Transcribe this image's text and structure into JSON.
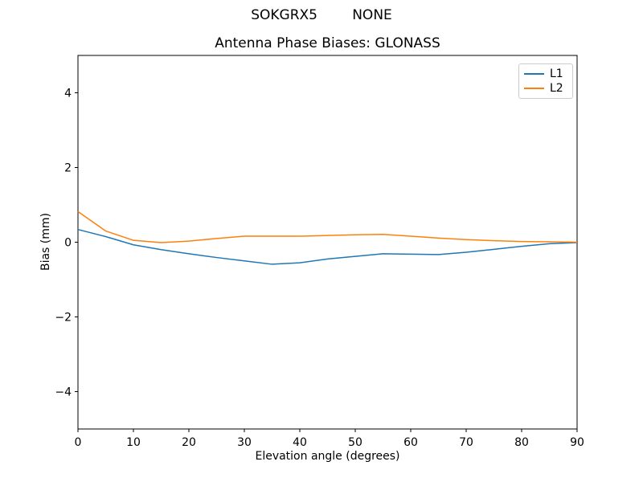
{
  "suptitle": "SOKGRX5        NONE",
  "chart_data": {
    "type": "line",
    "title": "Antenna Phase Biases: GLONASS",
    "xlabel": "Elevation angle (degrees)",
    "ylabel": "Bias (mm)",
    "xlim": [
      0,
      90
    ],
    "ylim": [
      -5,
      5
    ],
    "xticks": [
      0,
      10,
      20,
      30,
      40,
      50,
      60,
      70,
      80,
      90
    ],
    "yticks": [
      -4,
      -2,
      0,
      2,
      4
    ],
    "grid": false,
    "legend_position": "upper right",
    "x": [
      0,
      5,
      10,
      15,
      20,
      25,
      30,
      35,
      40,
      45,
      50,
      55,
      60,
      65,
      70,
      75,
      80,
      85,
      90
    ],
    "series": [
      {
        "name": "L1",
        "color": "#1f77b4",
        "values": [
          0.34,
          0.15,
          -0.07,
          -0.2,
          -0.31,
          -0.41,
          -0.5,
          -0.59,
          -0.55,
          -0.45,
          -0.38,
          -0.31,
          -0.32,
          -0.33,
          -0.27,
          -0.19,
          -0.11,
          -0.04,
          -0.01
        ]
      },
      {
        "name": "L2",
        "color": "#ff7f0e",
        "values": [
          0.82,
          0.3,
          0.05,
          -0.01,
          0.03,
          0.1,
          0.16,
          0.16,
          0.16,
          0.18,
          0.2,
          0.21,
          0.16,
          0.11,
          0.07,
          0.04,
          0.02,
          0.01,
          0.0
        ]
      }
    ],
    "axis_color": "#000000",
    "tick_label_color": "#000000"
  }
}
